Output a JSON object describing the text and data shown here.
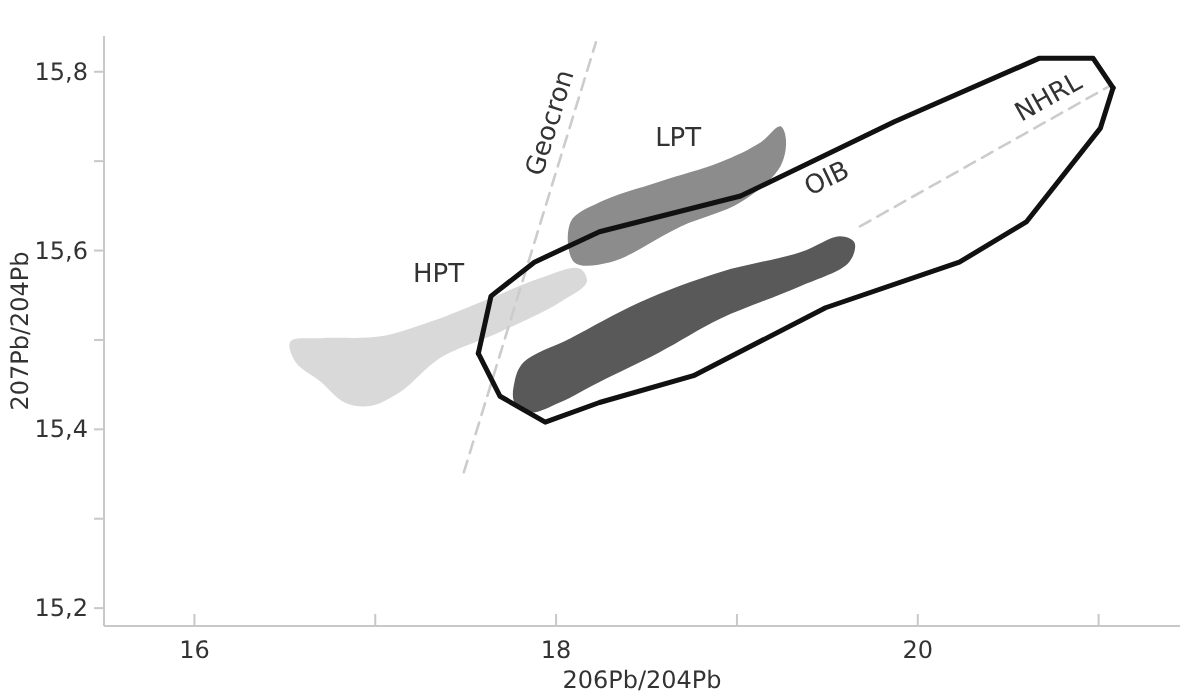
{
  "chart_data": {
    "type": "area",
    "xlabel": "206Pb/204Pb",
    "ylabel": "207Pb/204Pb",
    "xlim": [
      15.5,
      21.45
    ],
    "ylim": [
      15.18,
      15.84
    ],
    "xticks": [
      16,
      {
        "value": 17,
        "label": null
      },
      18,
      {
        "value": 19,
        "label": null
      },
      20,
      {
        "value": 21,
        "label": null
      }
    ],
    "yticks": [
      {
        "value": 15.2,
        "label": "15,2"
      },
      {
        "value": 15.3,
        "label": null
      },
      {
        "value": 15.4,
        "label": "15,4"
      },
      {
        "value": 15.5,
        "label": null
      },
      {
        "value": 15.6,
        "label": "15,6"
      },
      {
        "value": 15.7,
        "label": null
      },
      {
        "value": 15.8,
        "label": "15,8"
      }
    ],
    "grid": false,
    "legend": false,
    "series": [
      {
        "name": "HPT",
        "color": "#d9d9d9",
        "x": [
          16.53,
          16.7,
          17.03,
          17.3,
          17.64,
          17.91,
          18.13,
          18.17,
          18.02,
          17.69,
          17.36,
          17.14,
          16.97,
          16.83,
          16.7,
          16.56
        ],
        "values": [
          15.498,
          15.502,
          15.504,
          15.52,
          15.547,
          15.569,
          15.58,
          15.565,
          15.542,
          15.509,
          15.48,
          15.442,
          15.426,
          15.43,
          15.453,
          15.475
        ]
      },
      {
        "name": "LPT",
        "color": "#8c8c8c",
        "x": [
          18.08,
          18.24,
          18.57,
          18.91,
          19.13,
          19.24,
          19.27,
          19.24,
          19.02,
          18.69,
          18.3,
          18.1
        ],
        "values": [
          15.632,
          15.654,
          15.677,
          15.699,
          15.721,
          15.739,
          15.726,
          15.694,
          15.654,
          15.627,
          15.587,
          15.587
        ]
      },
      {
        "color": "#595959",
        "x": [
          17.77,
          17.82,
          18.08,
          18.46,
          18.91,
          19.35,
          19.57,
          19.65,
          19.62,
          19.35,
          18.91,
          18.57,
          18.24,
          18.02,
          17.86,
          17.77
        ],
        "values": [
          15.453,
          15.475,
          15.502,
          15.542,
          15.576,
          15.598,
          15.616,
          15.609,
          15.587,
          15.56,
          15.524,
          15.486,
          15.453,
          15.43,
          15.419,
          15.43
        ]
      },
      {
        "name": "Geocron",
        "type": "line",
        "color": "#cccccc",
        "line_style": "dashed",
        "x": [
          17.49,
          18.22
        ],
        "values": [
          15.352,
          15.833
        ]
      },
      {
        "name": "NHRL",
        "type": "line",
        "color": "#cccccc",
        "line_style": "dashed",
        "x": [
          19.68,
          21.06
        ],
        "values": [
          15.627,
          15.784
        ]
      },
      {
        "name": "OIB",
        "type": "line",
        "color": "#111111",
        "line_style": "solid",
        "x": [
          17.57,
          17.64,
          17.88,
          18.24,
          19.02,
          19.87,
          20.67,
          20.97,
          21.08
        ],
        "values": [
          15.485,
          15.549,
          15.587,
          15.621,
          15.661,
          15.744,
          15.815,
          15.815,
          15.782
        ]
      },
      {
        "type": "line",
        "color": "#111111",
        "line_style": "solid",
        "x": [
          17.57,
          17.69,
          17.94,
          18.24,
          18.76,
          19.49,
          20.23,
          20.6,
          21.01,
          21.08
        ],
        "values": [
          15.485,
          15.437,
          15.408,
          15.43,
          15.46,
          15.536,
          15.587,
          15.632,
          15.737,
          15.782
        ]
      }
    ]
  }
}
